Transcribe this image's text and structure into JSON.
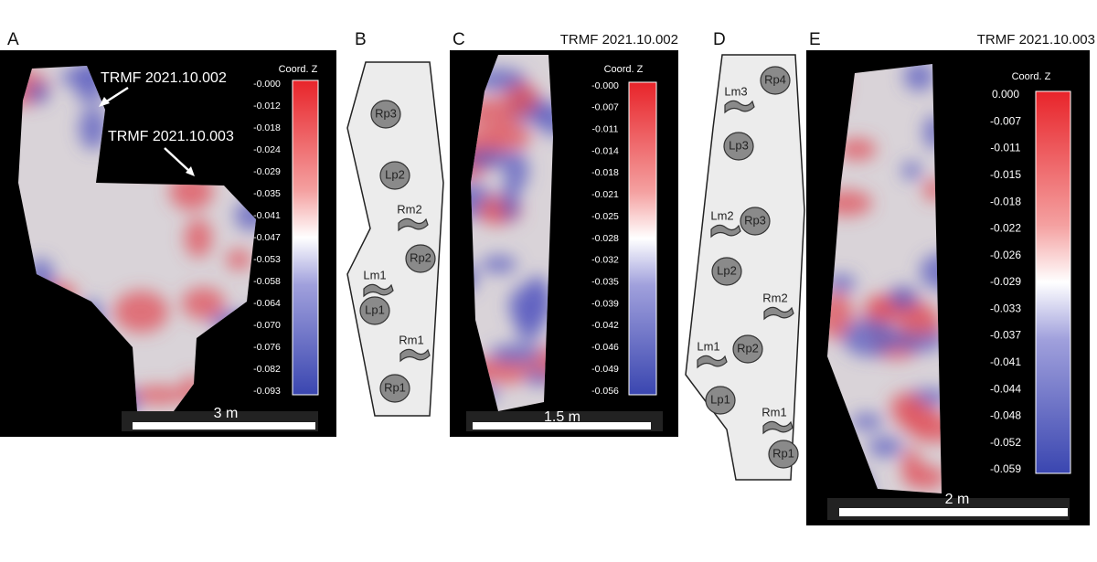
{
  "panels": [
    {
      "label": "A",
      "annotations": [
        "TRMF 2021.10.002",
        "TRMF 2021.10.003"
      ],
      "colorbar_title": "Coord. Z",
      "colorbar_ticks": [
        "-0.000",
        "-0.012",
        "-0.018",
        "-0.024",
        "-0.029",
        "-0.035",
        "-0.041",
        "-0.047",
        "-0.053",
        "-0.058",
        "-0.064",
        "-0.070",
        "-0.076",
        "-0.082",
        "-0.093"
      ],
      "scale": "3 m"
    },
    {
      "label": "B",
      "tracks": [
        "Rp3",
        "Lp2",
        "Rm2",
        "Rp2",
        "Lm1",
        "Lp1",
        "Rm1",
        "Rp1"
      ]
    },
    {
      "label": "C",
      "title": "TRMF 2021.10.002",
      "colorbar_title": "Coord. Z",
      "colorbar_ticks": [
        "-0.000",
        "-0.007",
        "-0.011",
        "-0.014",
        "-0.018",
        "-0.021",
        "-0.025",
        "-0.028",
        "-0.032",
        "-0.035",
        "-0.039",
        "-0.042",
        "-0.046",
        "-0.049",
        "-0.056"
      ],
      "scale": "1.5 m"
    },
    {
      "label": "D",
      "tracks": [
        "Rp4",
        "Lm3",
        "Lp3",
        "Lm2",
        "Rp3",
        "Lp2",
        "Rm2",
        "Lm1",
        "Rp2",
        "Lp1",
        "Rm1",
        "Rp1"
      ]
    },
    {
      "label": "E",
      "title": "TRMF 2021.10.003",
      "colorbar_title": "Coord. Z",
      "colorbar_ticks": [
        "0.000",
        "-0.007",
        "-0.011",
        "-0.015",
        "-0.018",
        "-0.022",
        "-0.026",
        "-0.029",
        "-0.033",
        "-0.037",
        "-0.041",
        "-0.044",
        "-0.048",
        "-0.052",
        "-0.059"
      ],
      "scale": "2 m"
    }
  ]
}
